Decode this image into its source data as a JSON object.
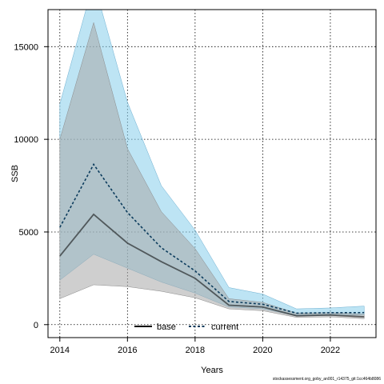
{
  "chart_data": {
    "type": "line",
    "xlabel": "Years",
    "ylabel": "SSB",
    "xlim": [
      2013.65,
      2023.35
    ],
    "ylim": [
      -700,
      17000
    ],
    "x_ticks": [
      2014,
      2016,
      2018,
      2020,
      2022
    ],
    "y_ticks": [
      0,
      5000,
      10000,
      15000
    ],
    "grid": true,
    "legend_position": "bottom-center",
    "x": [
      2014,
      2015,
      2016,
      2017,
      2018,
      2019,
      2020,
      2021,
      2022,
      2023
    ],
    "series": [
      {
        "name": "base",
        "color": "#000000",
        "band_color": "#a8a8a8",
        "values": [
          3700,
          5950,
          4400,
          3400,
          2500,
          1050,
          950,
          480,
          520,
          420
        ],
        "lower": [
          1400,
          2150,
          2050,
          1800,
          1450,
          850,
          750,
          390,
          420,
          320
        ],
        "upper": [
          10000,
          16300,
          9500,
          6100,
          4100,
          1400,
          1200,
          620,
          640,
          560
        ]
      },
      {
        "name": "current",
        "color": "#0b3b5c",
        "band_color": "#87ceeb",
        "values": [
          5250,
          8650,
          6050,
          4150,
          2900,
          1250,
          1100,
          620,
          640,
          650
        ],
        "lower": [
          2400,
          3800,
          3050,
          2300,
          1700,
          950,
          850,
          480,
          510,
          510
        ],
        "upper": [
          11900,
          18500,
          12000,
          7500,
          5100,
          2000,
          1650,
          850,
          900,
          1000
        ]
      }
    ]
  },
  "footer": "stockassessment.org_goby_an001_r14375_git:1cc464b8086"
}
